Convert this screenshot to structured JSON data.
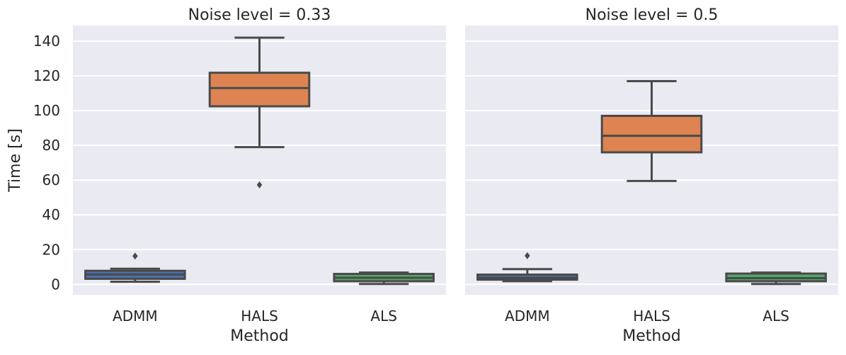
{
  "chart_data": [
    {
      "type": "box",
      "title": "Noise level = 0.33",
      "xlabel": "Method",
      "ylabel": "Time [s]",
      "ylim": [
        -6,
        149
      ],
      "yticks": [
        0,
        20,
        40,
        60,
        80,
        100,
        120,
        140
      ],
      "grid": true,
      "categories": [
        "ADMM",
        "HALS",
        "ALS"
      ],
      "colors": [
        "#4c72b0",
        "#dd8452",
        "#55a868"
      ],
      "boxes": [
        {
          "category": "ADMM",
          "min": 1.5,
          "q1": 3.2,
          "median": 5.7,
          "q3": 7.8,
          "max": 9.0,
          "outliers": [
            16.3
          ]
        },
        {
          "category": "HALS",
          "min": 79.0,
          "q1": 102.5,
          "median": 113.0,
          "q3": 121.8,
          "max": 142.0,
          "outliers": [
            57.3
          ]
        },
        {
          "category": "ALS",
          "min": 0.2,
          "q1": 1.8,
          "median": 3.8,
          "q3": 6.0,
          "max": 6.8,
          "outliers": []
        }
      ]
    },
    {
      "type": "box",
      "title": "Noise level = 0.5",
      "xlabel": "Method",
      "ylabel": "",
      "ylim": [
        -6,
        149
      ],
      "yticks": [
        0,
        20,
        40,
        60,
        80,
        100,
        120,
        140
      ],
      "grid": true,
      "categories": [
        "ADMM",
        "HALS",
        "ALS"
      ],
      "colors": [
        "#4c72b0",
        "#dd8452",
        "#55a868"
      ],
      "boxes": [
        {
          "category": "ADMM",
          "min": 1.8,
          "q1": 2.7,
          "median": 3.8,
          "q3": 5.6,
          "max": 8.8,
          "outliers": [
            16.5
          ]
        },
        {
          "category": "HALS",
          "min": 59.5,
          "q1": 76.0,
          "median": 85.5,
          "q3": 97.0,
          "max": 117.0,
          "outliers": []
        },
        {
          "category": "ALS",
          "min": 0.2,
          "q1": 1.8,
          "median": 3.6,
          "q3": 6.2,
          "max": 6.8,
          "outliers": []
        }
      ]
    }
  ]
}
